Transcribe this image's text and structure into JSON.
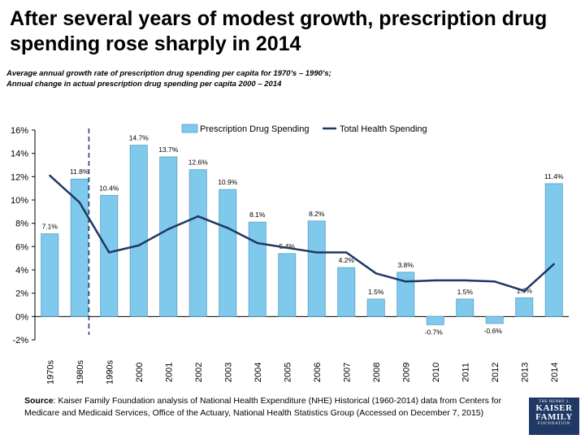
{
  "title": "After several years of modest growth, prescription drug spending rose sharply in 2014",
  "subtitle": {
    "line1": "Average annual growth rate of prescription drug spending per capita for 1970’s – 1990’s;",
    "line2": "Annual change in actual prescription drug spending per capita 2000 – 2014"
  },
  "source": {
    "label": "Source",
    "text": ": Kaiser Family Foundation analysis of National Health Expenditure (NHE) Historical (1960-2014) data from Centers for Medicare and Medicaid Services, Office of the Actuary, National Health Statistics Group (Accessed on December 7, 2015)"
  },
  "logo": {
    "line1": "THE HENRY J.",
    "line2a": "KAISER",
    "line2b": "FAMILY",
    "line3": "FOUNDATION"
  },
  "colors": {
    "bar": "#7fc9ec",
    "bar_stroke": "#5a9fc4",
    "line": "#1f3864",
    "divider": "#1f3864",
    "text": "#000000"
  },
  "chart_data": {
    "type": "bar+line",
    "categories": [
      "1970s",
      "1980s",
      "1990s",
      "2000",
      "2001",
      "2002",
      "2003",
      "2004",
      "2005",
      "2006",
      "2007",
      "2008",
      "2009",
      "2010",
      "2011",
      "2012",
      "2013",
      "2014"
    ],
    "series": [
      {
        "name": "Prescription Drug Spending",
        "type": "bar",
        "values": [
          7.1,
          11.8,
          10.4,
          14.7,
          13.7,
          12.6,
          10.9,
          8.1,
          5.4,
          8.2,
          4.2,
          1.5,
          3.8,
          -0.7,
          1.5,
          -0.6,
          1.6,
          11.4
        ],
        "labels": [
          "7.1%",
          "11.8%",
          "10.4%",
          "14.7%",
          "13.7%",
          "12.6%",
          "10.9%",
          "8.1%",
          "5.4%",
          "8.2%",
          "4.2%",
          "1.5%",
          "3.8%",
          "-0.7%",
          "1.5%",
          "-0.6%",
          "1.6%",
          "11.4%"
        ]
      },
      {
        "name": "Total Health Spending",
        "type": "line",
        "values": [
          12.1,
          9.8,
          5.5,
          6.1,
          7.5,
          8.6,
          7.6,
          6.3,
          5.9,
          5.5,
          5.5,
          3.7,
          3.0,
          3.1,
          3.1,
          3.0,
          2.2,
          4.5
        ]
      }
    ],
    "y_ticks": [
      -2,
      0,
      2,
      4,
      6,
      8,
      10,
      12,
      14,
      16
    ],
    "y_tick_labels": [
      "-2%",
      "0%",
      "2%",
      "4%",
      "6%",
      "8%",
      "10%",
      "12%",
      "14%",
      "16%"
    ],
    "ylim": [
      -2,
      16
    ],
    "divider_after_category": "1980s",
    "legend": {
      "position": "top-center",
      "entries": [
        "Prescription Drug Spending",
        "Total Health Spending"
      ]
    },
    "grid": false
  }
}
